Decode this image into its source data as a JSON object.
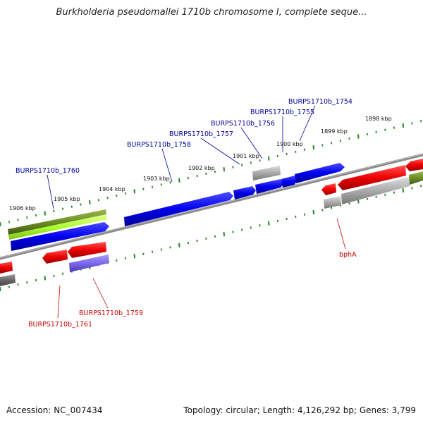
{
  "title": "Burkholderia pseudomallei 1710b chromosome I, complete seque...",
  "footer": {
    "accession": "Accession: NC_007434",
    "topology": "Topology: circular; Length: 4,126,292 bp; Genes: 3,799"
  },
  "ticks": [
    {
      "label": "1906 kbp"
    },
    {
      "label": "1905 kbp"
    },
    {
      "label": "1904 kbp"
    },
    {
      "label": "1903 kbp"
    },
    {
      "label": "1902 kbp"
    },
    {
      "label": "1901 kbp"
    },
    {
      "label": "1900 kbp"
    },
    {
      "label": "1899 kbp"
    },
    {
      "label": "1898 kbp"
    }
  ],
  "gene_labels": [
    {
      "name": "BURPS1710b_1760",
      "color": "#000099"
    },
    {
      "name": "BURPS1710b_1758",
      "color": "#000099"
    },
    {
      "name": "BURPS1710b_1757",
      "color": "#000099"
    },
    {
      "name": "BURPS1710b_1756",
      "color": "#000099"
    },
    {
      "name": "BURPS1710b_1755",
      "color": "#000099"
    },
    {
      "name": "BURPS1710b_1754",
      "color": "#000099"
    },
    {
      "name": "BURPS1710b_1759",
      "color": "#cc0000"
    },
    {
      "name": "BURPS1710b_1761",
      "color": "#cc0000"
    },
    {
      "name": "bphA",
      "color": "#cc0000"
    }
  ],
  "colors": {
    "forward_gene": "#0000ee",
    "reverse_gene": "#ee0000",
    "grey_gene": "#aaaaaa",
    "olive_gene": "#6b8e23",
    "lightgreen_gene": "#adff2f",
    "purple_gene": "#7b68ee",
    "backbone": "#888888",
    "tick": "#228b22"
  }
}
